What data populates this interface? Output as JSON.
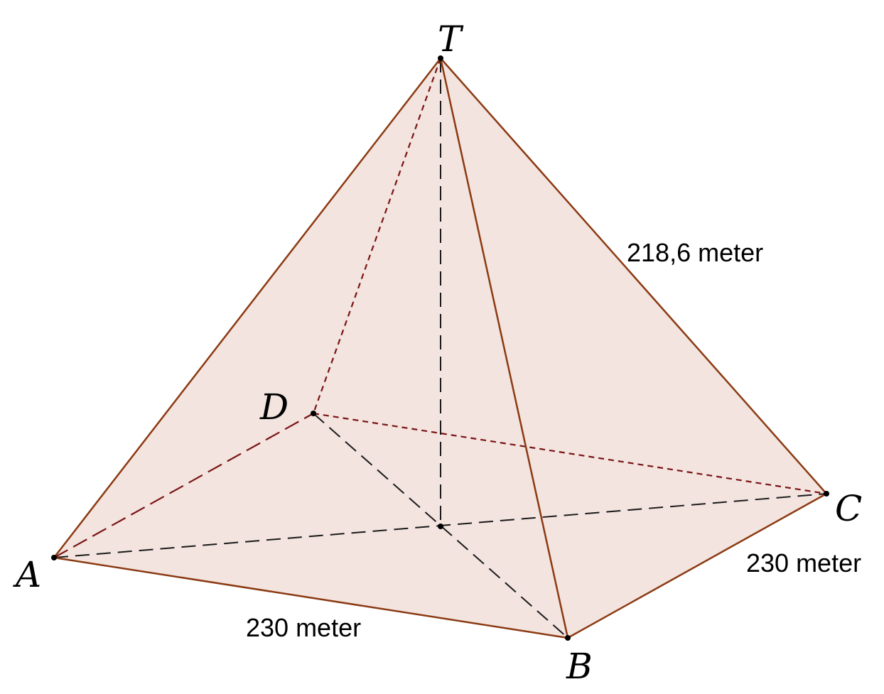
{
  "vertices": {
    "T": "T",
    "A": "A",
    "B": "B",
    "C": "C",
    "D": "D"
  },
  "measurements": {
    "lateral_edge": "218,6 meter",
    "base_edge_ab": "230 meter",
    "base_edge_bc": "230 meter"
  },
  "colors": {
    "face_fill": "#f3e4df",
    "visible_edge": "#8B3A12",
    "hidden_edge": "#7a1414",
    "construction_line": "#1a1a1a"
  }
}
